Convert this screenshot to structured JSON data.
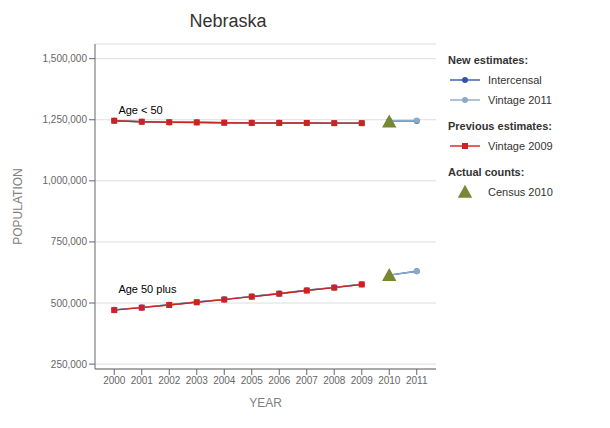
{
  "chart_data": {
    "type": "line",
    "title": "Nebraska",
    "xlabel": "YEAR",
    "ylabel": "POPULATION",
    "xlim": [
      1999.3,
      2011.7
    ],
    "xticks": [
      2000,
      2001,
      2002,
      2003,
      2004,
      2005,
      2006,
      2007,
      2008,
      2009,
      2010,
      2011
    ],
    "ylim": [
      230000,
      1560000
    ],
    "yticks": [
      {
        "value": 250000,
        "label": "250,000"
      },
      {
        "value": 500000,
        "label": "500,000"
      },
      {
        "value": 750000,
        "label": "750,000"
      },
      {
        "value": 1000000,
        "label": "1,000,000"
      },
      {
        "value": 1250000,
        "label": "1,250,000"
      },
      {
        "value": 1500000,
        "label": "1,500,000"
      }
    ],
    "grid": "y",
    "annotations": [
      {
        "text": "Age < 50",
        "x": 2000.15,
        "y": 1262000
      },
      {
        "text": "Age 50 plus",
        "x": 2000.15,
        "y": 527000
      }
    ],
    "series": [
      {
        "name": "Intercensal",
        "group": "New estimates:",
        "color": "#3355aa",
        "marker": "circle",
        "line_style": "solid",
        "x": [
          2000,
          2001,
          2002,
          2003,
          2004,
          2005,
          2006,
          2007,
          2008,
          2009
        ],
        "values": [
          1246000,
          1242000,
          1240000,
          1240000,
          1238000,
          1238000,
          1238000,
          1237000,
          1237000,
          1237000
        ]
      },
      {
        "name": "Intercensal",
        "group": "New estimates:",
        "color": "#3355aa",
        "marker": "circle",
        "line_style": "solid",
        "x": [
          2010,
          2011
        ],
        "values": [
          1245000,
          1245000
        ]
      },
      {
        "name": "Vintage 2011",
        "group": "New estimates:",
        "color": "#88aacc",
        "marker": "circle",
        "line_style": "solid",
        "x": [
          2000,
          2001,
          2002,
          2003,
          2004,
          2005,
          2006,
          2007,
          2008,
          2009
        ],
        "values": [
          1246000,
          1242000,
          1240000,
          1240000,
          1238000,
          1238000,
          1238000,
          1237000,
          1237000,
          1237000
        ]
      },
      {
        "name": "Vintage 2011",
        "group": "New estimates:",
        "color": "#88aacc",
        "marker": "circle",
        "line_style": "solid",
        "x": [
          2010,
          2011
        ],
        "values": [
          1246000,
          1247000
        ]
      },
      {
        "name": "Vintage 2009",
        "group": "Previous estimates:",
        "color": "#cc2222",
        "marker": "square",
        "line_style": "solid",
        "x": [
          2000,
          2001,
          2002,
          2003,
          2004,
          2005,
          2006,
          2007,
          2008,
          2009
        ],
        "values": [
          1246000,
          1242000,
          1240000,
          1239000,
          1238000,
          1237000,
          1237000,
          1237000,
          1236000,
          1236000
        ]
      },
      {
        "name": "Census 2010",
        "group": "Actual counts:",
        "color": "#778833",
        "marker": "triangle",
        "line_style": "none",
        "x": [
          2010
        ],
        "values": [
          1242000
        ]
      },
      {
        "name": "Intercensal",
        "group": "New estimates:",
        "color": "#3355aa",
        "marker": "circle",
        "line_style": "solid",
        "x": [
          2000,
          2001,
          2002,
          2003,
          2004,
          2005,
          2006,
          2007,
          2008,
          2009
        ],
        "values": [
          472000,
          482000,
          493000,
          504000,
          515000,
          527000,
          539000,
          552000,
          564000,
          577000
        ]
      },
      {
        "name": "Intercensal",
        "group": "New estimates:",
        "color": "#3355aa",
        "marker": "circle",
        "line_style": "solid",
        "x": [
          2010,
          2011
        ],
        "values": [
          614000,
          630000
        ]
      },
      {
        "name": "Vintage 2011",
        "group": "New estimates:",
        "color": "#88aacc",
        "marker": "circle",
        "line_style": "solid",
        "x": [
          2000,
          2001,
          2002,
          2003,
          2004,
          2005,
          2006,
          2007,
          2008,
          2009
        ],
        "values": [
          472000,
          482000,
          493000,
          504000,
          515000,
          527000,
          539000,
          552000,
          564000,
          577000
        ]
      },
      {
        "name": "Vintage 2011",
        "group": "New estimates:",
        "color": "#88aacc",
        "marker": "circle",
        "line_style": "solid",
        "x": [
          2010,
          2011
        ],
        "values": [
          614000,
          630000
        ]
      },
      {
        "name": "Vintage 2009",
        "group": "Previous estimates:",
        "color": "#cc2222",
        "marker": "square",
        "line_style": "solid",
        "x": [
          2000,
          2001,
          2002,
          2003,
          2004,
          2005,
          2006,
          2007,
          2008,
          2009
        ],
        "values": [
          471000,
          481000,
          492000,
          503000,
          514000,
          526000,
          538000,
          551000,
          563000,
          576000
        ]
      },
      {
        "name": "Census 2010",
        "group": "Actual counts:",
        "color": "#778833",
        "marker": "triangle",
        "line_style": "none",
        "x": [
          2010
        ],
        "values": [
          614000
        ]
      }
    ]
  }
}
